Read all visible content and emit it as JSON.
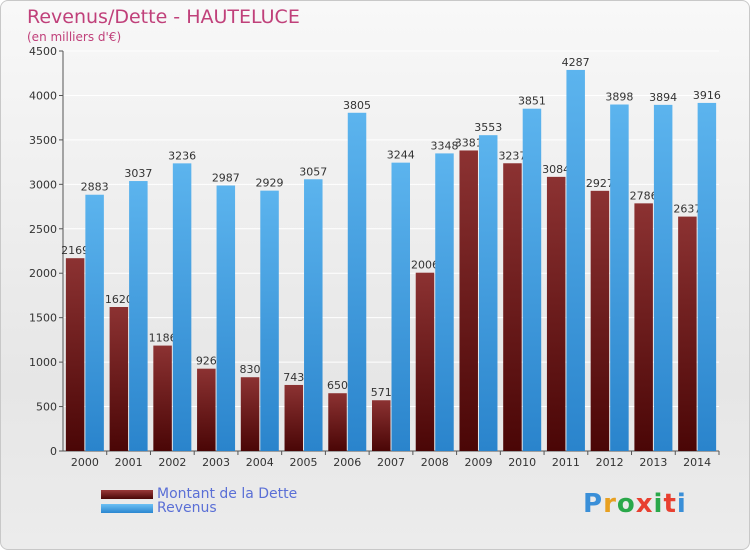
{
  "chart_data": {
    "type": "bar",
    "title": "Revenus/Dette - HAUTELUCE",
    "subtitle": "(en milliers d'€)",
    "categories": [
      "2000",
      "2001",
      "2002",
      "2003",
      "2004",
      "2005",
      "2006",
      "2007",
      "2008",
      "2009",
      "2010",
      "2011",
      "2012",
      "2013",
      "2014"
    ],
    "series": [
      {
        "name": "Montant de la Dette",
        "color": "#7a2424",
        "values": [
          2169,
          1620,
          1186,
          926,
          830,
          743,
          650,
          571,
          2006,
          3381,
          3237,
          3084,
          2927,
          2786,
          2637
        ],
        "labels": [
          "2169",
          "1620",
          "1186",
          "926",
          "830",
          "743",
          "650",
          "571",
          "2006",
          "3381",
          "3237",
          "3084",
          "2927",
          "2786",
          "2637"
        ]
      },
      {
        "name": "Revenus",
        "color": "#4ea6e8",
        "values": [
          2883,
          3037,
          3236,
          2987,
          2929,
          3057,
          3805,
          3244,
          3348,
          3553,
          3851,
          4287,
          3898,
          3894,
          3916
        ],
        "labels": [
          "2883",
          "3037",
          "3236",
          "2987",
          "2929",
          "3057",
          "3805",
          "3244",
          "3348",
          "3553",
          "3851",
          "4287",
          "3898",
          "3894",
          "3916"
        ]
      }
    ],
    "ylim": [
      0,
      4500
    ],
    "yticks": [
      "0",
      "500",
      "1000",
      "1500",
      "2000",
      "2500",
      "3000",
      "3500",
      "4000",
      "4500"
    ],
    "grid": true,
    "legend_position": "bottom-left"
  },
  "legend": {
    "dette": "Montant de la Dette",
    "revenus": "Revenus"
  },
  "logo": {
    "letters": [
      "P",
      "r",
      "o",
      "x",
      "i",
      "t",
      "i"
    ],
    "colors": [
      "#3a8fd8",
      "#e8a020",
      "#2aa84a",
      "#e84030",
      "#2aa84a",
      "#e84030",
      "#3a8fd8"
    ]
  }
}
